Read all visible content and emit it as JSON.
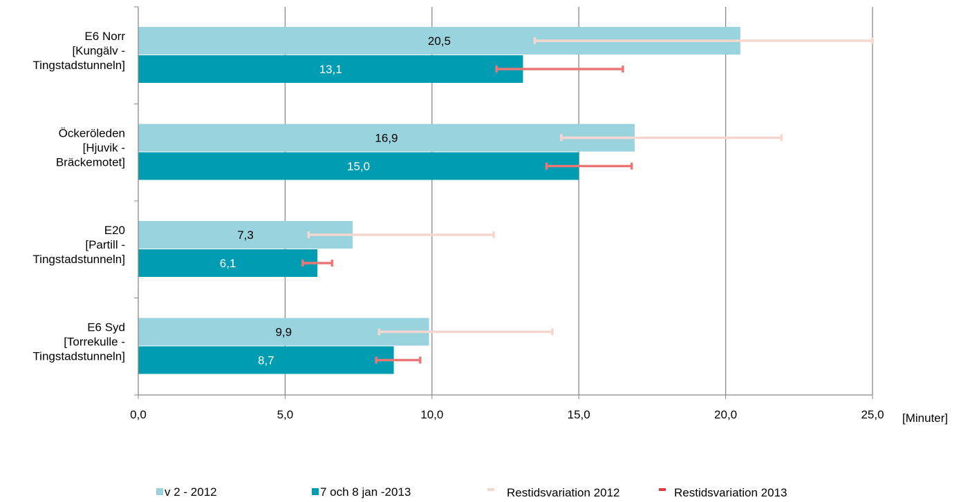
{
  "chart_data": {
    "type": "bar",
    "orientation": "horizontal",
    "categories": [
      [
        "E6 Norr",
        "[Kungälv -",
        "Tingstadstunneln]"
      ],
      [
        "Öckeröleden",
        "[Hjuvik -",
        "Bräckemotet]"
      ],
      [
        "E20",
        "[Partill -",
        "Tingstadstunneln]"
      ],
      [
        "E6 Syd",
        "[Torrekulle -",
        "Tingstadstunneln]"
      ]
    ],
    "series": [
      {
        "name": "v 2 - 2012",
        "values": [
          20.5,
          16.9,
          7.3,
          9.9
        ],
        "labels": [
          "20,5",
          "16,9",
          "7,3",
          "9,9"
        ]
      },
      {
        "name": "7 och 8 jan -2013",
        "values": [
          13.1,
          15.0,
          6.1,
          8.7
        ],
        "labels": [
          "13,1",
          "15,0",
          "6,1",
          "8,7"
        ]
      }
    ],
    "error_series": [
      {
        "name": "Restidsvariation 2012",
        "ranges": [
          [
            13.5,
            25.0
          ],
          [
            14.4,
            21.9
          ],
          [
            5.8,
            12.1
          ],
          [
            8.2,
            14.1
          ]
        ]
      },
      {
        "name": "Restidsvariation  2013",
        "ranges": [
          [
            12.2,
            16.5
          ],
          [
            13.9,
            16.8
          ],
          [
            5.6,
            6.6
          ],
          [
            8.1,
            9.6
          ]
        ]
      }
    ],
    "xlim": [
      0,
      25
    ],
    "x_ticks": [
      0,
      5,
      10,
      15,
      20,
      25
    ],
    "x_tick_labels": [
      "0,0",
      "5,0",
      "10,0",
      "15,0",
      "20,0",
      "25,0"
    ],
    "xlabel": "[Minuter]",
    "ylabel": "",
    "title": "",
    "grid": true,
    "legend_position": "bottom",
    "colors": {
      "series_2012": "#99d3dd",
      "series_2013": "#009db2",
      "error_2012": "#f6d7cf",
      "error_2013": "#ea7676",
      "grid": "#888888",
      "axis": "#888888"
    }
  }
}
